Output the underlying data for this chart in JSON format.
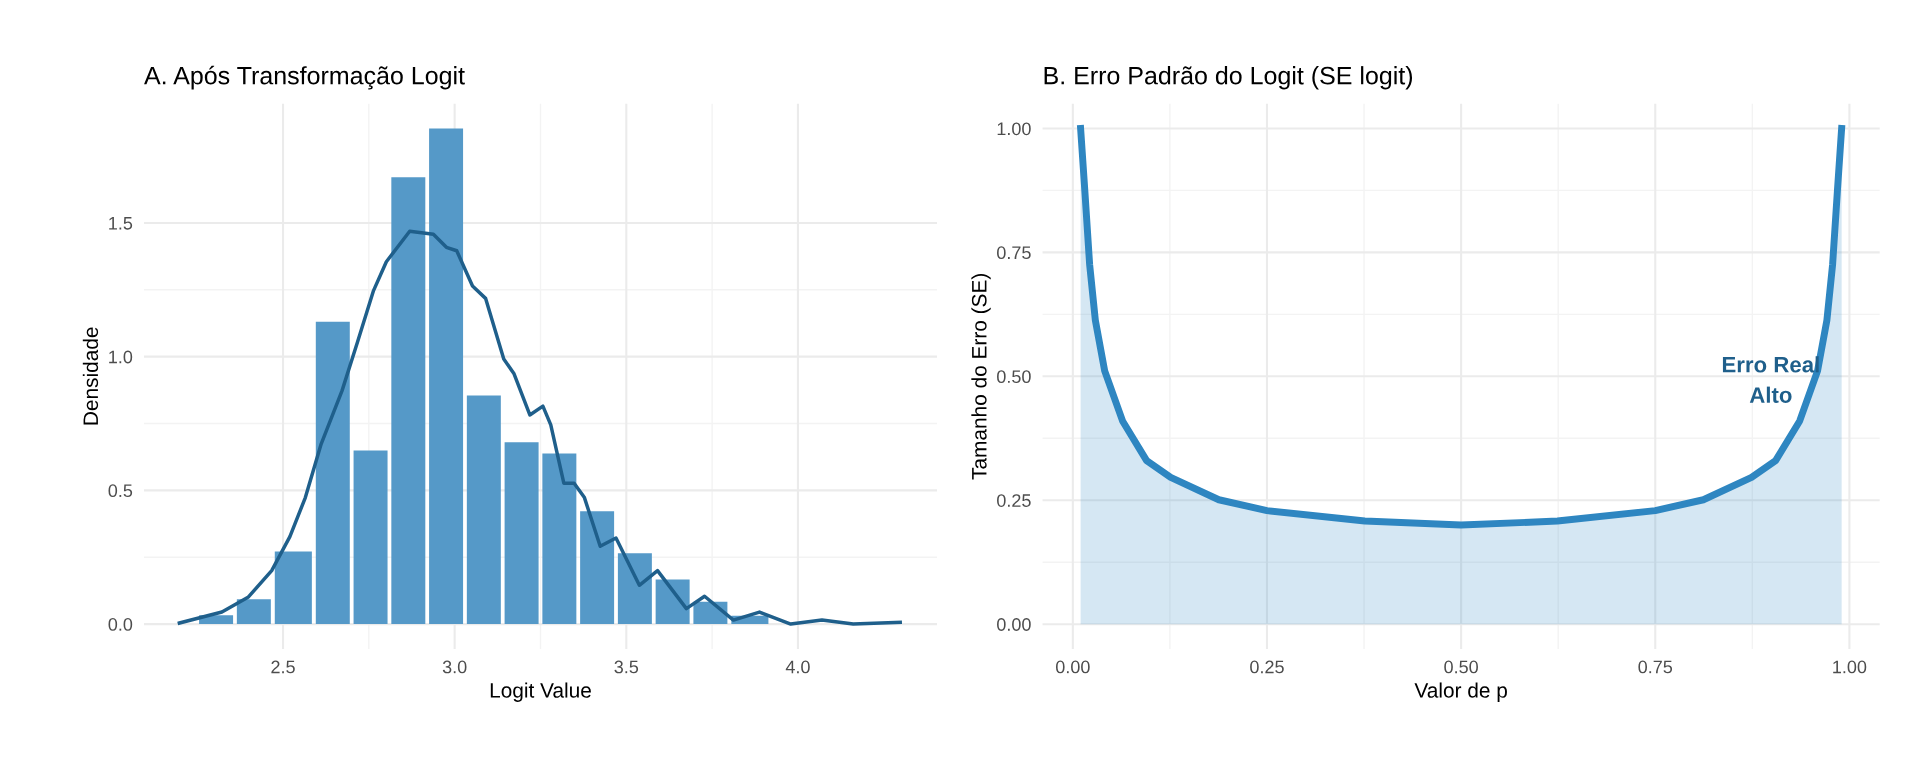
{
  "chart_data": [
    {
      "type": "histogram",
      "title": "A. Após Transformação Logit",
      "xlabel": "Logit Value",
      "ylabel": "Densidade",
      "bins": [
        2.25,
        2.36,
        2.47,
        2.59,
        2.7,
        2.81,
        2.92,
        3.03,
        3.14,
        3.25,
        3.36,
        3.47,
        3.58,
        3.69,
        3.8,
        3.92
      ],
      "values": [
        0.033,
        0.093,
        0.271,
        1.131,
        0.649,
        1.671,
        1.853,
        0.855,
        0.68,
        0.638,
        0.422,
        0.265,
        0.167,
        0.084,
        0.031
      ],
      "color": "#5599c8",
      "series": [
        {
          "type": "line",
          "color": "#1f5f8b",
          "x": [
            2.198,
            2.322,
            2.398,
            2.467,
            2.52,
            2.565,
            2.611,
            2.672,
            2.717,
            2.763,
            2.801,
            2.869,
            2.938,
            2.976,
            3.006,
            3.052,
            3.09,
            3.143,
            3.173,
            3.219,
            3.257,
            3.28,
            3.318,
            3.348,
            3.378,
            3.424,
            3.47,
            3.538,
            3.591,
            3.675,
            3.728,
            3.812,
            3.888,
            3.979,
            4.07,
            4.161,
            4.298
          ],
          "values": [
            0.004,
            0.045,
            0.1,
            0.2,
            0.327,
            0.473,
            0.673,
            0.873,
            1.055,
            1.245,
            1.355,
            1.469,
            1.458,
            1.409,
            1.396,
            1.264,
            1.218,
            0.991,
            0.936,
            0.782,
            0.815,
            0.745,
            0.527,
            0.527,
            0.473,
            0.291,
            0.322,
            0.145,
            0.2,
            0.058,
            0.104,
            0.015,
            0.045,
            0.0,
            0.015,
            0.0,
            0.007
          ]
        }
      ],
      "xlim": [
        2.095,
        4.405
      ],
      "ylim": [
        -0.093,
        1.946
      ],
      "xticks": [
        2.5,
        {
          "value": 3,
          "label": "3.0"
        },
        3.5,
        {
          "value": 4,
          "label": "4.0"
        }
      ],
      "yticks": [
        {
          "value": 0,
          "label": "0.0"
        },
        0.5,
        {
          "value": 1,
          "label": "1.0"
        },
        1.5
      ],
      "grid": true
    },
    {
      "type": "area",
      "title": "B. Erro Padrão do Logit (SE logit)",
      "xlabel": "Valor de p",
      "ylabel": "Tamanho do Erro (SE)",
      "series": [
        {
          "color": "#2e86c1",
          "x": [
            0.01,
            0.0155,
            0.0216,
            0.029,
            0.041,
            0.064,
            0.095,
            0.126,
            0.188,
            0.25,
            0.376,
            0.5,
            0.624,
            0.75,
            0.812,
            0.874,
            0.905,
            0.936,
            0.959,
            0.971,
            0.9784,
            0.9845,
            0.99
          ],
          "values": [
            1.0,
            0.873,
            0.726,
            0.613,
            0.511,
            0.41,
            0.33,
            0.296,
            0.251,
            0.229,
            0.208,
            0.2,
            0.208,
            0.229,
            0.251,
            0.296,
            0.33,
            0.41,
            0.511,
            0.613,
            0.726,
            0.873,
            1.0
          ]
        }
      ],
      "annotations": [
        "Erro Real\nAlto"
      ],
      "xlim": [
        -0.039,
        1.039
      ],
      "ylim": [
        -0.05,
        1.05
      ],
      "xticks": [
        {
          "value": 0,
          "label": "0.00"
        },
        0.25,
        {
          "value": 0.5,
          "label": "0.50"
        },
        0.75,
        {
          "value": 1,
          "label": "1.00"
        }
      ],
      "yticks": [
        {
          "value": 0,
          "label": "0.00"
        },
        0.25,
        {
          "value": 0.5,
          "label": "0.50"
        },
        0.75,
        {
          "value": 1,
          "label": "1.00"
        }
      ],
      "grid": true
    }
  ]
}
